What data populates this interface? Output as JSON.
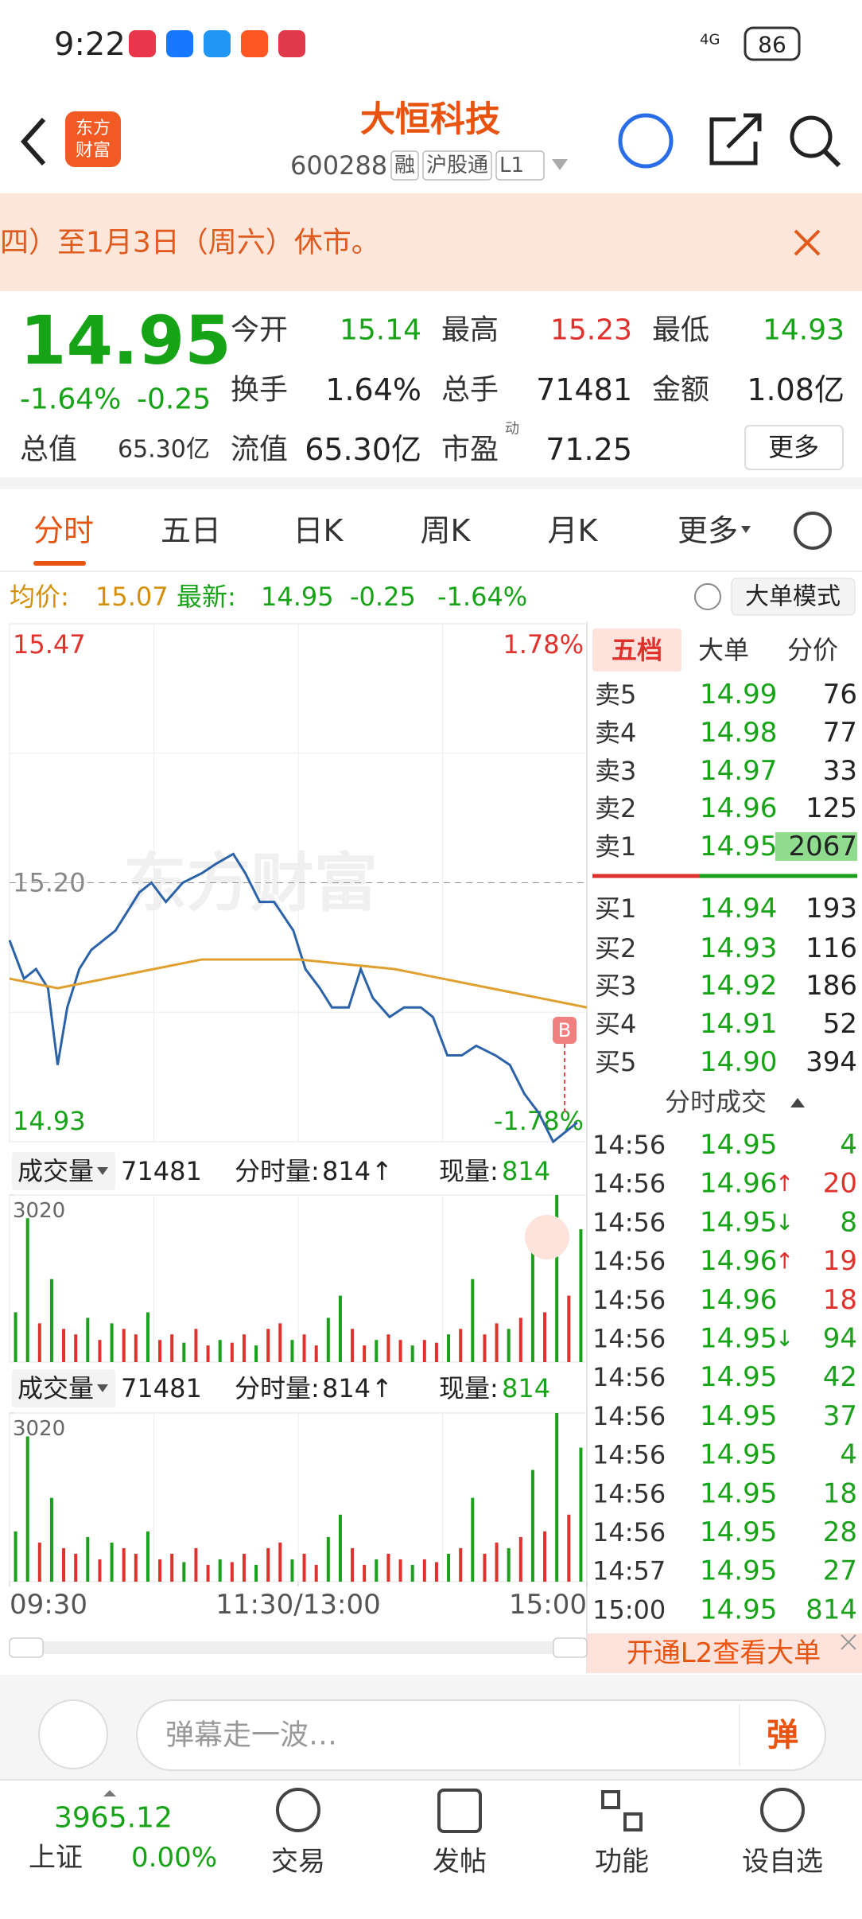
{
  "status_bar": {
    "time": "9:22",
    "network": "4G",
    "battery": "86"
  },
  "header": {
    "logo": "东方财富",
    "title": "大恒科技",
    "code": "600288",
    "tags": [
      "融",
      "沪股通",
      "L1"
    ]
  },
  "notice": {
    "text": "四）至1月3日（周六）休市。"
  },
  "quote": {
    "price": "14.95",
    "change_pct": "-1.64%",
    "change": "-0.25",
    "fields": [
      {
        "label": "今开",
        "value": "15.14"
      },
      {
        "label": "最高",
        "value": "15.23"
      },
      {
        "label": "最低",
        "value": "14.93"
      },
      {
        "label": "换手",
        "value": "1.64%"
      },
      {
        "label": "总手",
        "value": "71481"
      },
      {
        "label": "金额",
        "value": "1.08亿"
      },
      {
        "label": "流值",
        "value": "65.30亿"
      },
      {
        "label": "市盈",
        "sup": "动",
        "value": "71.25"
      }
    ],
    "total_value": {
      "label": "总值",
      "value": "65.30亿"
    },
    "more": "更多"
  },
  "tabs": [
    "分时",
    "五日",
    "日K",
    "周K",
    "月K",
    "更多"
  ],
  "info_bar": {
    "avg_label": "均价:",
    "avg": "15.07",
    "last_label": "最新:",
    "last": "14.95",
    "change": "-0.25",
    "change_pct": "-1.64%",
    "mode": "大单模式"
  },
  "price_chart": {
    "type": "line",
    "watermark": "东方财富",
    "marker": "B",
    "xlim": [
      0,
      240
    ],
    "xticks": [
      {
        "value": 0,
        "label": "09:30"
      },
      {
        "value": 120,
        "label": "11:30/13:00"
      },
      {
        "value": 240,
        "label": "15:00"
      }
    ],
    "ylim": [
      14.93,
      15.47
    ],
    "yticks": [
      14.93,
      {
        "value": 15.2,
        "label": "15.20"
      },
      15.47
    ],
    "y2lim": [
      -1.78,
      1.78
    ],
    "y2ticks": [
      {
        "value": -1.78,
        "label": "-1.78%"
      },
      {
        "value": 1.78,
        "label": "1.78%"
      }
    ],
    "series": [
      {
        "color": "#2b62a8",
        "x": [
          0,
          6,
          11,
          16,
          20,
          24,
          29,
          34,
          39,
          44,
          49,
          54,
          59,
          65,
          72,
          80,
          86,
          93,
          98,
          104,
          110,
          118,
          123,
          129,
          134,
          141,
          146,
          151,
          158,
          164,
          171,
          176,
          182,
          188,
          194,
          202,
          208,
          214,
          220,
          226,
          236
        ],
        "values": [
          15.14,
          15.1,
          15.11,
          15.09,
          15.01,
          15.07,
          15.11,
          15.13,
          15.14,
          15.15,
          15.17,
          15.19,
          15.2,
          15.18,
          15.2,
          15.21,
          15.22,
          15.23,
          15.21,
          15.18,
          15.18,
          15.15,
          15.11,
          15.09,
          15.07,
          15.07,
          15.11,
          15.08,
          15.06,
          15.07,
          15.07,
          15.06,
          15.02,
          15.02,
          15.03,
          15.02,
          15.01,
          14.98,
          14.96,
          14.93,
          14.95
        ]
      },
      {
        "color": "#e0a030",
        "x": [
          0,
          20,
          40,
          60,
          80,
          100,
          120,
          140,
          160,
          180,
          200,
          220,
          240
        ],
        "values": [
          15.1,
          15.09,
          15.1,
          15.11,
          15.12,
          15.12,
          15.12,
          15.115,
          15.11,
          15.1,
          15.09,
          15.08,
          15.07
        ]
      }
    ]
  },
  "volume_chart": {
    "type": "bar",
    "label": "成交量",
    "total": "71481",
    "tick_vol_label": "分时量:",
    "tick_vol": "814",
    "arrow": "↑",
    "current_label": "现量:",
    "current": "814",
    "ylim": [
      0,
      3020
    ],
    "yticks": [
      3020
    ],
    "values": [
      900,
      2600,
      700,
      1500,
      600,
      500,
      800,
      400,
      700,
      600,
      500,
      900,
      400,
      500,
      350,
      600,
      300,
      400,
      350,
      500,
      300,
      600,
      700,
      400,
      500,
      300,
      800,
      1200,
      600,
      300,
      400,
      500,
      400,
      300,
      400,
      350,
      500,
      600,
      1500,
      500,
      700,
      600,
      800,
      2000,
      900,
      3020,
      1200,
      2400
    ],
    "colors": [
      "#1aa01a",
      "#1aa01a",
      "#e0312c",
      "#1aa01a",
      "#e0312c",
      "#e0312c",
      "#1aa01a",
      "#e0312c",
      "#1aa01a",
      "#e0312c",
      "#e0312c",
      "#1aa01a",
      "#e0312c",
      "#e0312c",
      "#1aa01a",
      "#e0312c",
      "#e0312c",
      "#1aa01a",
      "#e0312c",
      "#e0312c",
      "#1aa01a",
      "#e0312c",
      "#e0312c",
      "#1aa01a",
      "#e0312c",
      "#e0312c",
      "#1aa01a",
      "#1aa01a",
      "#e0312c",
      "#e0312c",
      "#1aa01a",
      "#e0312c",
      "#e0312c",
      "#1aa01a",
      "#e0312c",
      "#e0312c",
      "#1aa01a",
      "#e0312c",
      "#1aa01a",
      "#e0312c",
      "#e0312c",
      "#1aa01a",
      "#e0312c",
      "#1aa01a",
      "#e0312c",
      "#1aa01a",
      "#e0312c",
      "#1aa01a"
    ]
  },
  "order_book": {
    "tabs": [
      "五档",
      "大单",
      "分价"
    ],
    "asks": [
      {
        "label": "卖5",
        "price": "14.99",
        "volume": "76"
      },
      {
        "label": "卖4",
        "price": "14.98",
        "volume": "77"
      },
      {
        "label": "卖3",
        "price": "14.97",
        "volume": "33"
      },
      {
        "label": "卖2",
        "price": "14.96",
        "volume": "125"
      },
      {
        "label": "卖1",
        "price": "14.95",
        "volume": "2067"
      }
    ],
    "bids": [
      {
        "label": "买1",
        "price": "14.94",
        "volume": "193"
      },
      {
        "label": "买2",
        "price": "14.93",
        "volume": "116"
      },
      {
        "label": "买3",
        "price": "14.92",
        "volume": "186"
      },
      {
        "label": "买4",
        "price": "14.91",
        "volume": "52"
      },
      {
        "label": "买5",
        "price": "14.90",
        "volume": "394"
      }
    ]
  },
  "trades": {
    "title": "分时成交",
    "rows": [
      {
        "time": "14:56",
        "price": "14.95",
        "volume": "4",
        "color": "#1aa01a"
      },
      {
        "time": "14:56",
        "price": "14.96",
        "arrow": "↑",
        "volume": "20",
        "color": "#e0312c"
      },
      {
        "time": "14:56",
        "price": "14.95",
        "arrow": "↓",
        "volume": "8",
        "color": "#1aa01a"
      },
      {
        "time": "14:56",
        "price": "14.96",
        "arrow": "↑",
        "volume": "19",
        "color": "#e0312c"
      },
      {
        "time": "14:56",
        "price": "14.96",
        "volume": "18",
        "color": "#e0312c"
      },
      {
        "time": "14:56",
        "price": "14.95",
        "arrow": "↓",
        "volume": "94",
        "color": "#1aa01a"
      },
      {
        "time": "14:56",
        "price": "14.95",
        "volume": "42",
        "color": "#1aa01a"
      },
      {
        "time": "14:56",
        "price": "14.95",
        "volume": "37",
        "color": "#1aa01a"
      },
      {
        "time": "14:56",
        "price": "14.95",
        "volume": "4",
        "color": "#1aa01a"
      },
      {
        "time": "14:56",
        "price": "14.95",
        "volume": "18",
        "color": "#1aa01a"
      },
      {
        "time": "14:56",
        "price": "14.95",
        "volume": "28",
        "color": "#1aa01a"
      },
      {
        "time": "14:57",
        "price": "14.95",
        "volume": "27",
        "color": "#1aa01a"
      },
      {
        "time": "15:00",
        "price": "14.95",
        "volume": "814",
        "color": "#1aa01a"
      }
    ]
  },
  "l2_banner": "开通L2查看大单",
  "comment_bar": {
    "placeholder": "弹幕走一波…",
    "button": "弹"
  },
  "nav": {
    "index": {
      "value": "3965.12",
      "name": "上证",
      "change": "0.00%"
    },
    "items": [
      "交易",
      "发帖",
      "功能",
      "设自选"
    ]
  }
}
